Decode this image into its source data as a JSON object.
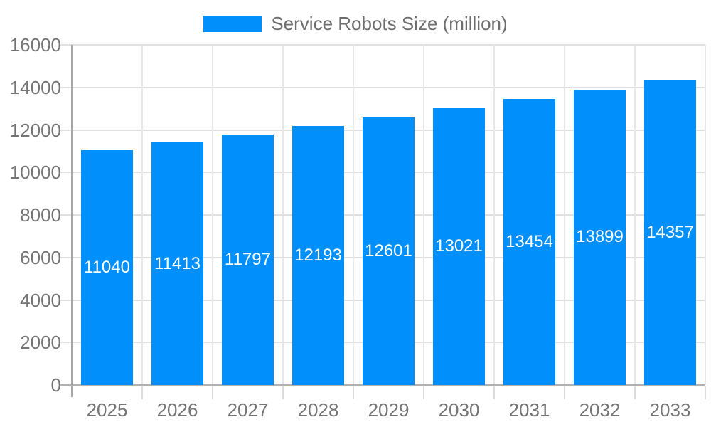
{
  "chart_data": {
    "type": "bar",
    "categories": [
      "2025",
      "2026",
      "2027",
      "2028",
      "2029",
      "2030",
      "2031",
      "2032",
      "2033"
    ],
    "series": [
      {
        "name": "Service Robots Size (million)",
        "values": [
          11040,
          11413,
          11797,
          12193,
          12601,
          13021,
          13454,
          13899,
          14357
        ]
      }
    ],
    "title": "",
    "xlabel": "",
    "ylabel": "",
    "ylim": [
      0,
      16000
    ],
    "yticks": [
      0,
      2000,
      4000,
      6000,
      8000,
      10000,
      12000,
      14000,
      16000
    ],
    "grid": true,
    "legend_position": "top",
    "data_labels": "inside-center"
  },
  "legend": {
    "label": "Service Robots Size (million)",
    "swatch_color": "#008FFB"
  },
  "colors": {
    "bar": "#008FFB",
    "bar_label": "#ffffff",
    "axis_label": "#757575",
    "legend_label": "#6e6e6e",
    "gridline": "#e0e0e0",
    "gridline_vertical": "#e8e8e8",
    "yaxis_line": "#a8a8a8",
    "xaxis_line": "#b1b1b1"
  }
}
